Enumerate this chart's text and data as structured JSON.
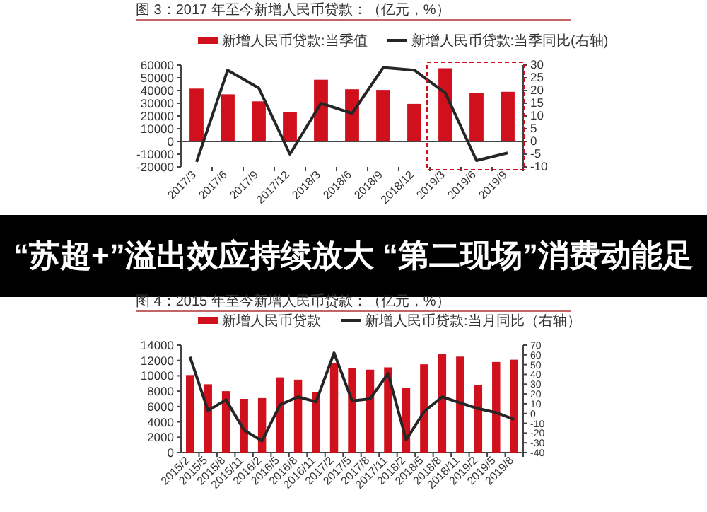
{
  "chart_data": [
    {
      "type": "bar",
      "title": "图 3：2017 年至今新增人民币贷款：（亿元，%）",
      "categories": [
        "2017/3",
        "2017/6",
        "2017/9",
        "2017/12",
        "2018/3",
        "2018/6",
        "2018/9",
        "2018/12",
        "2019/3",
        "2019/6",
        "2019/9"
      ],
      "series": [
        {
          "name": "新增人民币贷款:当季值",
          "type": "bar",
          "color": "#d0101c",
          "values": [
            41500,
            37000,
            31500,
            23000,
            48500,
            41000,
            40500,
            29500,
            57500,
            38000,
            39000
          ]
        },
        {
          "name": "新增人民币贷款:当季同比(右轴)",
          "type": "line",
          "axis": "y2",
          "color": "#262626",
          "values": [
            -8,
            28,
            21,
            -5,
            15,
            11,
            29,
            28,
            19,
            -7.5,
            -4.5
          ]
        }
      ],
      "ylim": [
        -20000,
        60000
      ],
      "yticks": [
        -20000,
        -10000,
        0,
        10000,
        20000,
        30000,
        40000,
        50000,
        60000
      ],
      "y2lim": [
        -10,
        30
      ],
      "y2ticks": [
        -10,
        -5,
        0,
        5,
        10,
        15,
        20,
        25,
        30
      ],
      "legend": "top"
    },
    {
      "type": "other",
      "title": "“苏超+”溢出效应持续放大 “第二现场”消费动能足"
    },
    {
      "type": "bar",
      "title": "图 4：2015 年至今新增人民币贷款：（亿元，%）",
      "categories": [
        "2015/2",
        "2015/5",
        "2015/8",
        "2015/11",
        "2016/2",
        "2016/5",
        "2016/8",
        "2016/11",
        "2017/2",
        "2017/5",
        "2017/8",
        "2017/11",
        "2018/2",
        "2018/5",
        "2018/8",
        "2018/11",
        "2019/2",
        "2019/5",
        "2019/8"
      ],
      "series": [
        {
          "name": "新增人民币贷款",
          "type": "bar",
          "color": "#d0101c",
          "values": [
            10100,
            8900,
            8000,
            7000,
            7100,
            9800,
            9500,
            7900,
            11700,
            11000,
            10800,
            11100,
            8400,
            11500,
            12800,
            12500,
            8800,
            11800,
            12100
          ]
        },
        {
          "name": "新增人民币贷款:当月同比（右轴）",
          "type": "line",
          "axis": "y2",
          "color": "#262626",
          "values": [
            58,
            3,
            14,
            -17,
            -28,
            9,
            17,
            12,
            62,
            13,
            15,
            41,
            -27,
            2,
            17,
            11,
            5,
            1,
            -6
          ]
        }
      ],
      "ylim": [
        0,
        14000
      ],
      "yticks": [
        0,
        2000,
        4000,
        6000,
        8000,
        10000,
        12000,
        14000
      ],
      "y2lim": [
        -40,
        70
      ],
      "y2ticks": [
        -40,
        -30,
        -20,
        -10,
        0,
        10,
        20,
        30,
        40,
        50,
        60,
        70
      ],
      "legend": "top"
    }
  ]
}
